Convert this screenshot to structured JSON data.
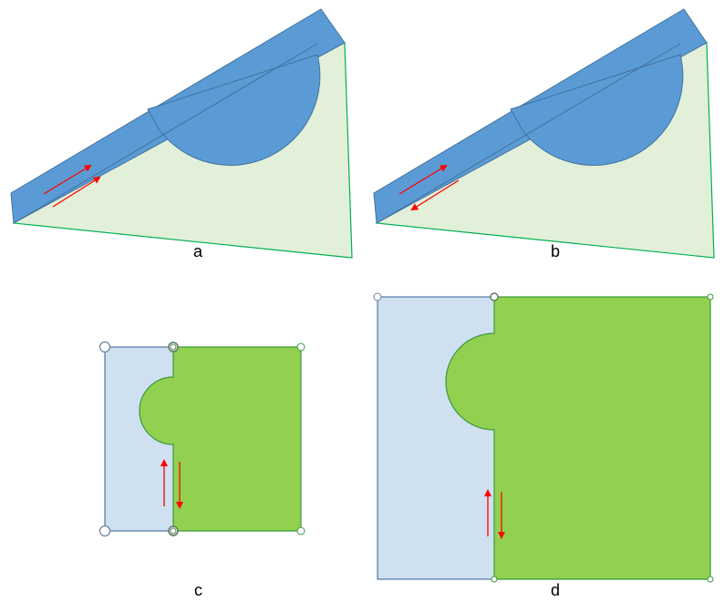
{
  "labels": {
    "a": "a",
    "b": "b",
    "c": "c",
    "d": "d"
  },
  "colors": {
    "slab_blue": "#5b9bd5",
    "slab_edge": "#41719c",
    "wedge_fill": "#e2f0d9",
    "wedge_edge": "#00b050",
    "light_blue": "#cfe0f1",
    "light_blue_edge": "#2e5f91",
    "green": "#92d050",
    "green_edge": "#3a9a3a",
    "arrow": "#ff0000"
  }
}
